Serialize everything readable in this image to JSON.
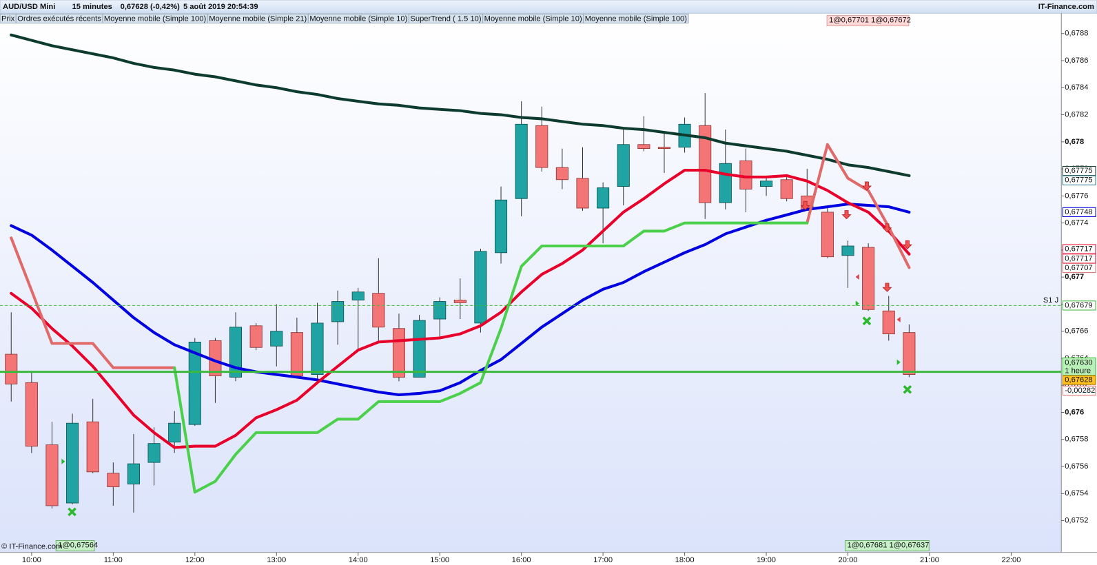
{
  "header": {
    "symbol": "AUD/USD Mini",
    "period": "15 minutes",
    "quote": "0,67628 (-0,42%)",
    "datetime": "5 août 2019 20:54:39",
    "brand": "IT-Finance.com"
  },
  "indicators": [
    {
      "label": "Prix",
      "color": "#222222"
    },
    {
      "label": "Ordres exécutés récents",
      "color": "#e07070"
    },
    {
      "label": "Moyenne mobile (Simple 100)",
      "color": "#0d3b2e"
    },
    {
      "label": "Moyenne mobile (Simple 21)",
      "color": "#0000e0"
    },
    {
      "label": "Moyenne mobile (Simple 10)",
      "color": "#e8002a"
    },
    {
      "label": "SuperTrend ( 1.5 10)",
      "color": "#e8a0a0"
    },
    {
      "label": "Moyenne mobile (Simple 10)",
      "color": "#e8002a"
    },
    {
      "label": "Moyenne mobile (Simple 100)",
      "color": "#0d3b2e"
    }
  ],
  "chart_data": {
    "type": "candlestick",
    "up_color": "#1fa3a3",
    "down_color": "#f47575",
    "ylim": [
      0.67497,
      0.67895
    ],
    "yticks": [
      {
        "value": 0.6788,
        "label": "0,6788"
      },
      {
        "value": 0.6786,
        "label": "0,6786"
      },
      {
        "value": 0.6784,
        "label": "0,6784"
      },
      {
        "value": 0.6782,
        "label": "0,6782"
      },
      {
        "value": 0.678,
        "label": "0,678"
      },
      {
        "value": 0.6778,
        "label": "0,6778"
      },
      {
        "value": 0.6776,
        "label": "0,6776"
      },
      {
        "value": 0.6774,
        "label": "0,6774"
      },
      {
        "value": 0.6772,
        "label": "0,6772"
      },
      {
        "value": 0.677,
        "label": "0,677"
      },
      {
        "value": 0.6768,
        "label": "0,6768"
      },
      {
        "value": 0.6766,
        "label": "0,6766"
      },
      {
        "value": 0.6764,
        "label": "0,6764"
      },
      {
        "value": 0.6762,
        "label": "0,6762"
      },
      {
        "value": 0.676,
        "label": "0,676"
      },
      {
        "value": 0.6758,
        "label": "0,6758"
      },
      {
        "value": 0.6756,
        "label": "0,6756"
      },
      {
        "value": 0.6754,
        "label": "0,6754"
      },
      {
        "value": 0.6752,
        "label": "0,6752"
      }
    ],
    "xticks": [
      {
        "value": 1,
        "label": "10:00"
      },
      {
        "value": 5,
        "label": "11:00"
      },
      {
        "value": 9,
        "label": "12:00"
      },
      {
        "value": 13,
        "label": "13:00"
      },
      {
        "value": 17,
        "label": "14:00"
      },
      {
        "value": 21,
        "label": "15:00"
      },
      {
        "value": 25,
        "label": "16:00"
      },
      {
        "value": 29,
        "label": "17:00"
      },
      {
        "value": 33,
        "label": "18:00"
      },
      {
        "value": 37,
        "label": "19:00"
      },
      {
        "value": 41,
        "label": "20:00"
      },
      {
        "value": 45,
        "label": "21:00"
      },
      {
        "value": 49,
        "label": "22:00"
      }
    ],
    "open": [
      0.67643,
      0.67622,
      0.67576,
      0.67533,
      0.67593,
      0.67555,
      0.67547,
      0.67563,
      0.67578,
      0.67591,
      0.67653,
      0.67626,
      0.67664,
      0.67649,
      0.67659,
      0.67628,
      0.67667,
      0.67683,
      0.67688,
      0.67662,
      0.67626,
      0.67669,
      0.67683,
      0.67666,
      0.67718,
      0.67758,
      0.67812,
      0.67781,
      0.67773,
      0.67751,
      0.67767,
      0.67798,
      0.67796,
      0.67796,
      0.67812,
      0.67755,
      0.67786,
      0.67767,
      0.67772,
      0.6776,
      0.67748,
      0.67716,
      0.67722,
      0.67675,
      0.67659
    ],
    "high": [
      0.67674,
      0.6763,
      0.67593,
      0.67599,
      0.6761,
      0.67563,
      0.67584,
      0.67589,
      0.67601,
      0.67655,
      0.67655,
      0.67674,
      0.67666,
      0.6768,
      0.6767,
      0.67681,
      0.6769,
      0.67692,
      0.67714,
      0.67673,
      0.67672,
      0.67685,
      0.67699,
      0.67721,
      0.67767,
      0.6783,
      0.67826,
      0.67795,
      0.67796,
      0.6777,
      0.6781,
      0.67819,
      0.67807,
      0.67818,
      0.67836,
      0.67809,
      0.67795,
      0.67774,
      0.67776,
      0.6778,
      0.67752,
      0.67727,
      0.67725,
      0.67686,
      0.67665
    ],
    "low": [
      0.67608,
      0.6757,
      0.67529,
      0.67532,
      0.67555,
      0.67531,
      0.67526,
      0.67546,
      0.6757,
      0.6759,
      0.67607,
      0.67623,
      0.67646,
      0.67634,
      0.67626,
      0.67622,
      0.6765,
      0.67646,
      0.67653,
      0.67623,
      0.67626,
      0.67655,
      0.67669,
      0.67659,
      0.6771,
      0.67745,
      0.67778,
      0.67765,
      0.67749,
      0.67725,
      0.67753,
      0.67793,
      0.67777,
      0.67792,
      0.67743,
      0.6775,
      0.67748,
      0.6776,
      0.67756,
      0.67749,
      0.67714,
      0.67692,
      0.67675,
      0.67653,
      0.67626
    ],
    "close": [
      0.67621,
      0.67575,
      0.67531,
      0.67592,
      0.67556,
      0.67545,
      0.67562,
      0.67577,
      0.67592,
      0.67652,
      0.67627,
      0.67663,
      0.67648,
      0.6766,
      0.67627,
      0.67666,
      0.67682,
      0.67689,
      0.67663,
      0.67626,
      0.67668,
      0.67682,
      0.67681,
      0.67719,
      0.67757,
      0.67813,
      0.67781,
      0.67772,
      0.67751,
      0.67766,
      0.67798,
      0.67795,
      0.67795,
      0.67813,
      0.67755,
      0.67784,
      0.67765,
      0.67771,
      0.67758,
      0.6775,
      0.67715,
      0.67723,
      0.67676,
      0.67658,
      0.67628
    ],
    "lines": [
      {
        "color": "#0d3b2e",
        "width": 4,
        "values": [
          0.67879,
          0.67875,
          0.67871,
          0.67868,
          0.67865,
          0.67862,
          0.67858,
          0.67855,
          0.67853,
          0.6785,
          0.67848,
          0.67845,
          0.67842,
          0.6784,
          0.67837,
          0.67835,
          0.67832,
          0.6783,
          0.67828,
          0.67827,
          0.67825,
          0.67824,
          0.67823,
          0.67821,
          0.6782,
          0.67818,
          0.67817,
          0.67815,
          0.67813,
          0.67812,
          0.6781,
          0.67809,
          0.67807,
          0.67805,
          0.67803,
          0.67799,
          0.67797,
          0.67795,
          0.67793,
          0.6779,
          0.67787,
          0.67783,
          0.67781,
          0.67778,
          0.67775
        ]
      },
      {
        "color": "#0000e0",
        "width": 4,
        "values": [
          0.67738,
          0.67731,
          0.6772,
          0.67708,
          0.67696,
          0.67683,
          0.6767,
          0.67659,
          0.6765,
          0.67644,
          0.67638,
          0.67633,
          0.6763,
          0.67628,
          0.67626,
          0.67624,
          0.67621,
          0.67618,
          0.67615,
          0.67613,
          0.67614,
          0.67616,
          0.67622,
          0.67631,
          0.67639,
          0.67651,
          0.67663,
          0.67673,
          0.67683,
          0.67691,
          0.67696,
          0.67704,
          0.67711,
          0.67718,
          0.67724,
          0.67732,
          0.67737,
          0.67742,
          0.67746,
          0.6775,
          0.67752,
          0.67754,
          0.67753,
          0.67752,
          0.67748
        ]
      },
      {
        "color": "#e8002a",
        "width": 4,
        "values": [
          0.67688,
          0.67677,
          0.67662,
          0.67649,
          0.67634,
          0.67616,
          0.67598,
          0.67585,
          0.67574,
          0.67575,
          0.67575,
          0.67583,
          0.67596,
          0.67602,
          0.67609,
          0.67622,
          0.67634,
          0.67646,
          0.67652,
          0.67653,
          0.67654,
          0.67655,
          0.67658,
          0.67664,
          0.67674,
          0.67689,
          0.67702,
          0.6771,
          0.6772,
          0.67734,
          0.67748,
          0.67758,
          0.67769,
          0.67779,
          0.67779,
          0.67776,
          0.67774,
          0.67774,
          0.67775,
          0.67771,
          0.67764,
          0.67755,
          0.67748,
          0.67734,
          0.67717
        ]
      },
      {
        "color": "#e06a6a",
        "width": 4,
        "values": [
          0.67729,
          0.6769,
          0.67651,
          0.67651,
          0.67651,
          0.67633,
          0.67633,
          0.67633,
          0.67633,
          null,
          null,
          null,
          null,
          null,
          null,
          null,
          null,
          null,
          null,
          null,
          null,
          null,
          null,
          null,
          null,
          null,
          null,
          null,
          null,
          null,
          null,
          null,
          null,
          null,
          null,
          null,
          null,
          null,
          null,
          0.6774,
          0.67798,
          0.67773,
          0.67764,
          0.67737,
          0.67707
        ]
      },
      {
        "color": "#4cd04c",
        "width": 4,
        "values": [
          null,
          null,
          null,
          null,
          null,
          null,
          null,
          null,
          0.67633,
          0.67541,
          0.67549,
          0.67569,
          0.67585,
          0.67585,
          0.67585,
          0.67585,
          0.67595,
          0.67595,
          0.67608,
          0.67608,
          0.67608,
          0.67608,
          0.67614,
          0.67622,
          0.67662,
          0.67708,
          0.67723,
          0.67723,
          0.67723,
          0.67723,
          0.67723,
          0.67734,
          0.67734,
          0.6774,
          0.6774,
          0.6774,
          0.6774,
          0.6774,
          0.6774,
          0.6774,
          null,
          null,
          null,
          null,
          null
        ]
      }
    ],
    "levels": [
      {
        "value": 0.67679,
        "label": "0,67679",
        "name": "S1 J",
        "color": "#3cb83c",
        "style": "dashed"
      },
      {
        "value": 0.6763,
        "label": "0,67630",
        "note": "1 heure",
        "color": "#3cb83c",
        "style": "solid"
      }
    ],
    "price_labels": [
      {
        "value": 0.67775,
        "label": "0,67775",
        "color": "#0d3b2e"
      },
      {
        "value": 0.67775,
        "label": "0,67775",
        "color": "#2a7a8a"
      },
      {
        "value": 0.67748,
        "label": "0,67748",
        "color": "#0000e0"
      },
      {
        "value": 0.67717,
        "label": "0,67717",
        "color": "#e8002a"
      },
      {
        "value": 0.67717,
        "label": "0,67717",
        "color": "#e8002a"
      },
      {
        "value": 0.67707,
        "label": "0,67707",
        "color": "#e07070"
      }
    ],
    "last_price": {
      "value": 0.67628,
      "label": "0,67628",
      "change": {
        "value": -0.00282,
        "label": "-0,00282"
      }
    },
    "annotations": {
      "top": "1@0,67701 1@0,67672",
      "bottom_left": "1@0,67564",
      "bottom_right": "1@0,67681 1@0,67637",
      "copyright": "© IT-Finance.com"
    }
  }
}
